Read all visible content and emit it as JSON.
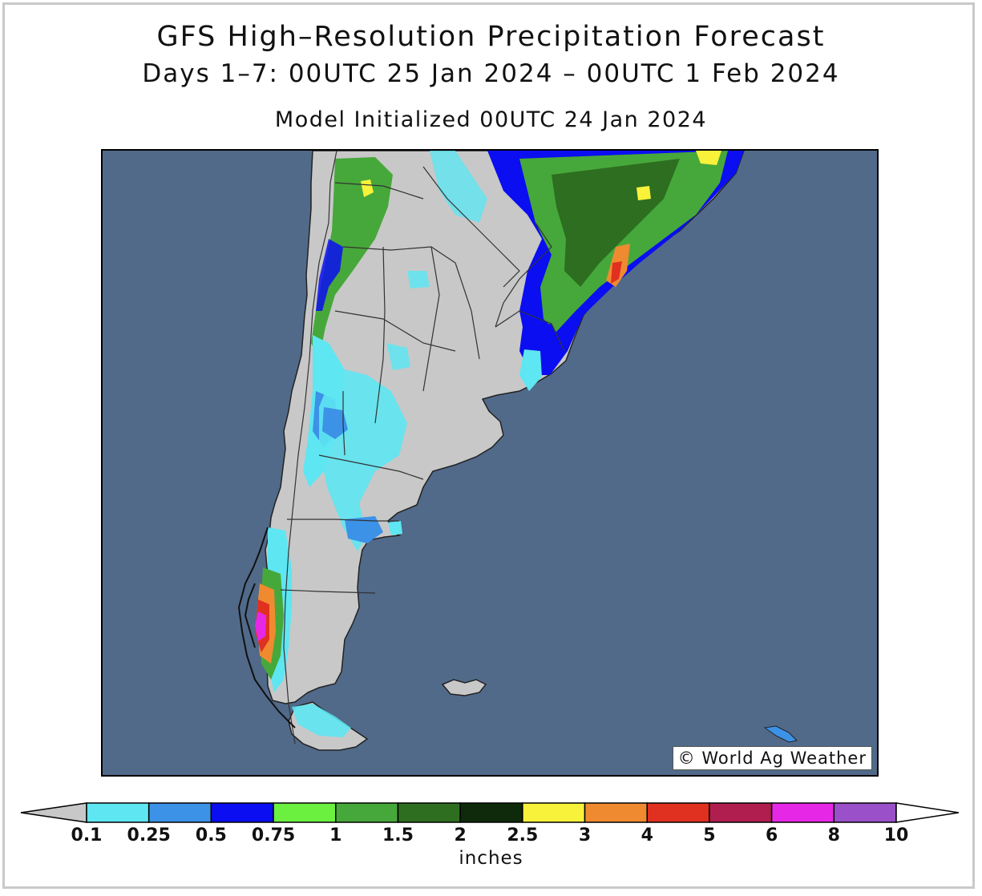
{
  "title": "GFS High–Resolution Precipitation Forecast",
  "subtitle": "Days 1–7: 00UTC 25 Jan 2024 – 00UTC 1 Feb 2024",
  "init_line": "Model Initialized 00UTC 24 Jan 2024",
  "credit": "World Ag Weather",
  "colors": {
    "ocean": "#516a8a",
    "land": "#c8c8c8",
    "border": "#333333"
  },
  "legend": {
    "units": "inches",
    "ticks": [
      "0.1",
      "0.25",
      "0.5",
      "0.75",
      "1",
      "1.5",
      "2",
      "2.5",
      "3",
      "4",
      "5",
      "6",
      "8",
      "10"
    ],
    "bins": [
      {
        "color": "#5ee6f2"
      },
      {
        "color": "#3c92e6"
      },
      {
        "color": "#0a0ef0"
      },
      {
        "color": "#6cf040"
      },
      {
        "color": "#46a83a"
      },
      {
        "color": "#2d6e20"
      },
      {
        "color": "#0e2a0a"
      },
      {
        "color": "#f8f23a"
      },
      {
        "color": "#f08a30"
      },
      {
        "color": "#e03020"
      },
      {
        "color": "#b01e50"
      },
      {
        "color": "#e628e6"
      },
      {
        "color": "#9a50c8"
      }
    ],
    "under_color": "#c8c8c8",
    "over_color": "#ffffff"
  }
}
